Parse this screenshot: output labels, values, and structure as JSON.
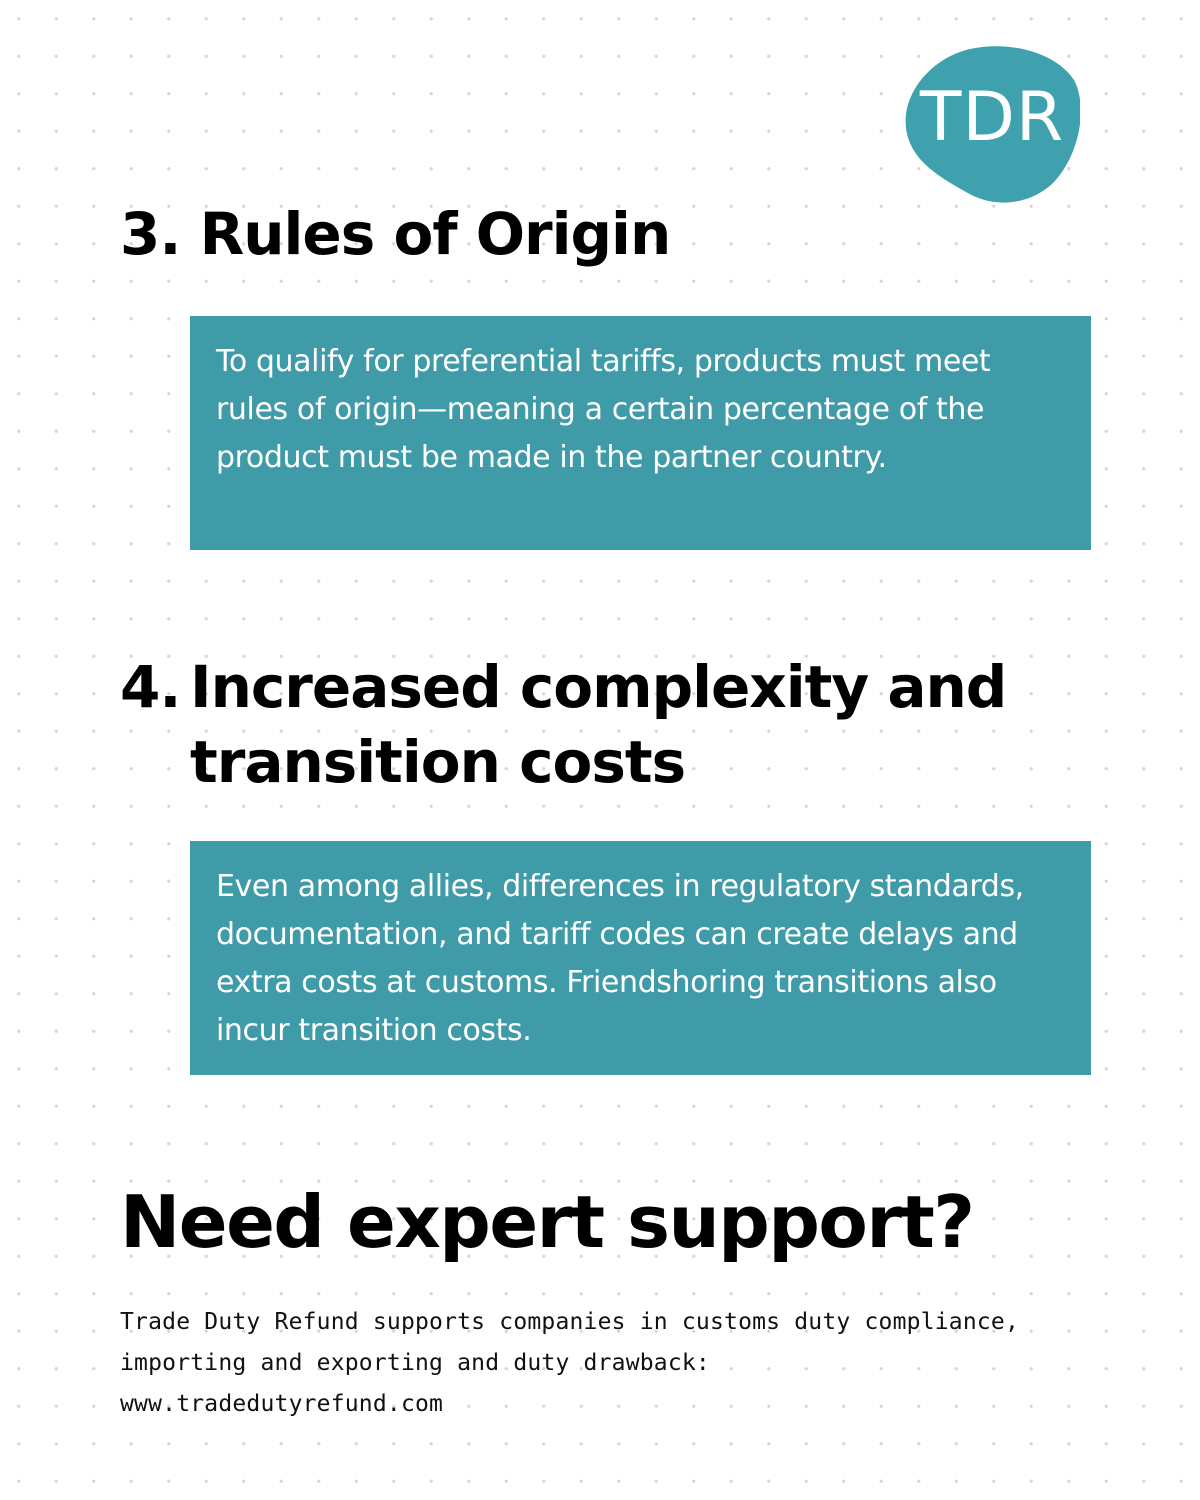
{
  "logo": {
    "text": "TDR",
    "color": "#3fa1ad"
  },
  "colors": {
    "card_background": "#409ba9",
    "card_text": "#ffffff",
    "heading_text": "#000000"
  },
  "section3": {
    "number": "3.",
    "title": "Rules of Origin",
    "body": "To qualify for preferential tariffs, products must meet rules of origin—meaning a certain percentage of the product must be made in the partner country."
  },
  "section4": {
    "number": "4.",
    "title_line1": "Increased complexity and",
    "title_line2": "transition costs",
    "body": "Even among allies, differences in regulatory standards, documentation, and tariff codes can create delays and extra costs at customs. Friendshoring transitions also incur transition costs."
  },
  "cta": {
    "title": "Need expert support?",
    "line1": "Trade Duty Refund supports companies in customs duty compliance,",
    "line2": "importing and exporting and duty drawback:",
    "website": "www.tradedutyrefund.com"
  }
}
